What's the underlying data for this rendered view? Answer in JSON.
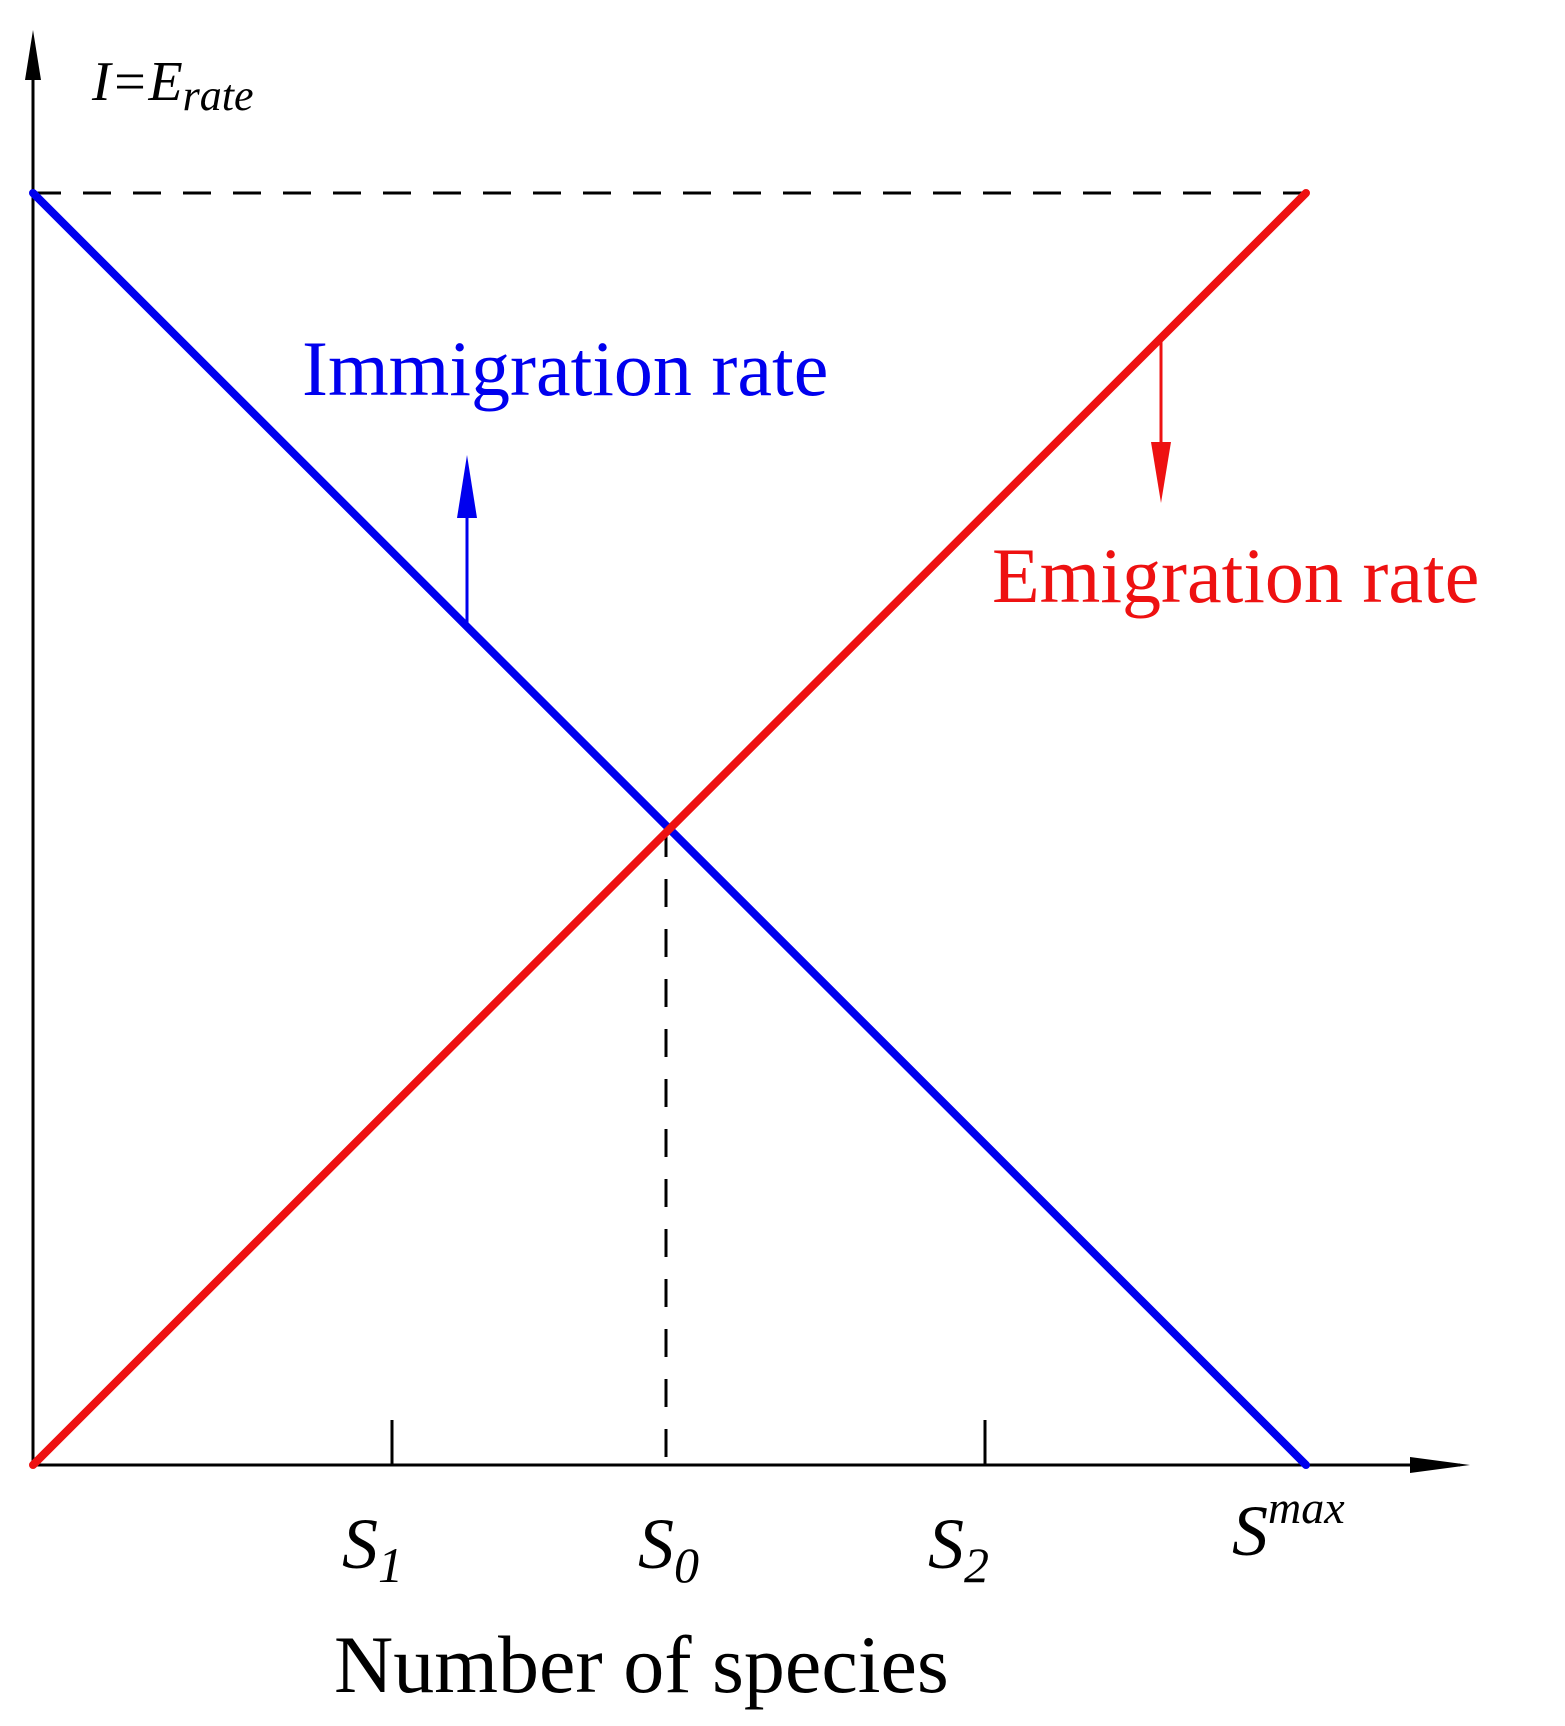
{
  "diagram": {
    "y_axis_label": {
      "main": "I=E",
      "sub": "rate"
    },
    "x_axis_label": "Number of species",
    "colors": {
      "immigration": "#0000ee",
      "emigration": "#ee1111",
      "axes": "#000000"
    },
    "immigration_label": "Immigration rate",
    "emigration_label": "Emigration rate",
    "ticks": [
      {
        "letter": "S",
        "script": "1",
        "script_pos": "sub"
      },
      {
        "letter": "S",
        "script": "0",
        "script_pos": "sub"
      },
      {
        "letter": "S",
        "script": "2",
        "script_pos": "sub"
      },
      {
        "letter": "S",
        "script": "max",
        "script_pos": "sup"
      }
    ]
  }
}
